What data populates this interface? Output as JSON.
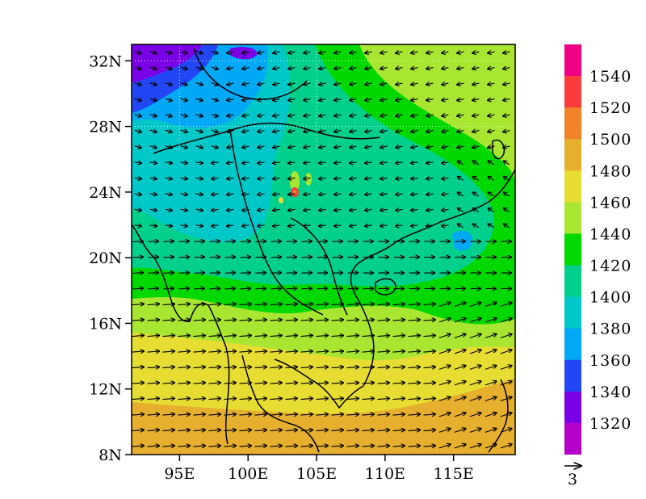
{
  "map": {
    "type": "filled-contour-with-wind-vectors",
    "lon_range": [
      91.5,
      119.5
    ],
    "lat_range": [
      8,
      33
    ],
    "x_ticks": [
      {
        "value": 95,
        "label": "95E"
      },
      {
        "value": 100,
        "label": "100E"
      },
      {
        "value": 105,
        "label": "105E"
      },
      {
        "value": 110,
        "label": "110E"
      },
      {
        "value": 115,
        "label": "115E"
      }
    ],
    "y_ticks": [
      {
        "value": 8,
        "label": "8N"
      },
      {
        "value": 12,
        "label": "12N"
      },
      {
        "value": 16,
        "label": "16N"
      },
      {
        "value": 20,
        "label": "20N"
      },
      {
        "value": 24,
        "label": "24N"
      },
      {
        "value": 28,
        "label": "28N"
      },
      {
        "value": 32,
        "label": "32N"
      }
    ],
    "grid_lines": {
      "lons": [
        95,
        105
      ],
      "lats": [
        28,
        32
      ]
    },
    "coastlines": true
  },
  "colorbar": {
    "levels": [
      {
        "label": "1320",
        "color": "#9d00d6"
      },
      {
        "label": "1340",
        "color": "#7a00e6"
      },
      {
        "label": "1360",
        "color": "#2346f5"
      },
      {
        "label": "1380",
        "color": "#00a8f5"
      },
      {
        "label": "1400",
        "color": "#00c8c8"
      },
      {
        "label": "1420",
        "color": "#00d08c"
      },
      {
        "label": "1440",
        "color": "#00d800"
      },
      {
        "label": "1460",
        "color": "#a8e632"
      },
      {
        "label": "1480",
        "color": "#e6dc32"
      },
      {
        "label": "1500",
        "color": "#e6af2d"
      },
      {
        "label": "1520",
        "color": "#f08228"
      },
      {
        "label": "1540",
        "color": "#fa3c3c"
      }
    ],
    "top_color": "#f00082",
    "bottom_color": "#b400c8"
  },
  "vector_reference": {
    "label": "3"
  }
}
